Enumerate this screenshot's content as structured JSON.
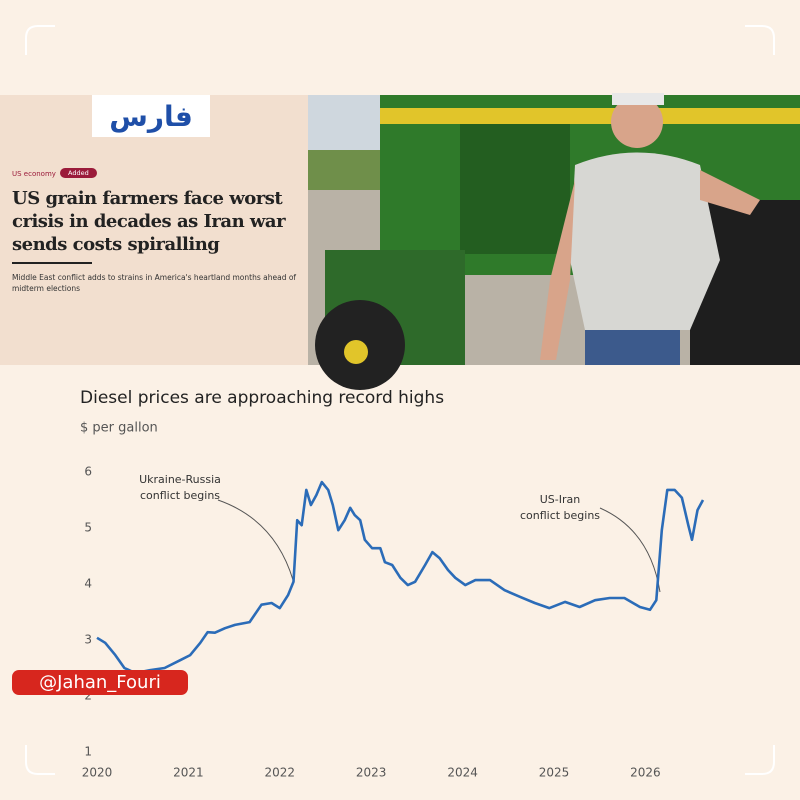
{
  "header": {
    "logo": "فارس",
    "section": "US economy",
    "badge": "Added",
    "headline": "US grain farmers face worst crisis in decades as Iran war sends costs spiralling",
    "standfirst": "Middle East conflict adds to strains in America's heartland months ahead of midterm elections"
  },
  "watermark": "@Jahan_Fouri",
  "chart_data": {
    "type": "line",
    "title": "Diesel prices are approaching record highs",
    "subtitle": "$ per gallon",
    "x": [
      2020.0,
      2020.09,
      2020.2,
      2020.3,
      2020.42,
      2020.58,
      2020.74,
      2020.91,
      2021.02,
      2021.13,
      2021.21,
      2021.29,
      2021.4,
      2021.51,
      2021.67,
      2021.8,
      2021.91,
      2022.0,
      2022.09,
      2022.15,
      2022.19,
      2022.24,
      2022.29,
      2022.34,
      2022.4,
      2022.46,
      2022.53,
      2022.58,
      2022.64,
      2022.71,
      2022.77,
      2022.82,
      2022.88,
      2022.93,
      2023.01,
      2023.1,
      2023.15,
      2023.23,
      2023.32,
      2023.4,
      2023.48,
      2023.59,
      2023.67,
      2023.75,
      2023.84,
      2023.92,
      2024.03,
      2024.14,
      2024.3,
      2024.46,
      2024.63,
      2024.79,
      2024.95,
      2025.12,
      2025.28,
      2025.45,
      2025.61,
      2025.77,
      2025.94,
      2026.05,
      2026.12,
      2026.18,
      2026.24,
      2026.32,
      2026.4,
      2026.47,
      2026.51,
      2026.57,
      2026.63
    ],
    "values": [
      3.04,
      2.95,
      2.73,
      2.5,
      2.41,
      2.46,
      2.5,
      2.64,
      2.73,
      2.95,
      3.14,
      3.13,
      3.21,
      3.27,
      3.32,
      3.63,
      3.66,
      3.57,
      3.8,
      4.04,
      5.14,
      5.05,
      5.68,
      5.41,
      5.59,
      5.82,
      5.68,
      5.41,
      4.96,
      5.14,
      5.36,
      5.23,
      5.14,
      4.79,
      4.64,
      4.64,
      4.39,
      4.34,
      4.11,
      3.98,
      4.04,
      4.34,
      4.57,
      4.46,
      4.25,
      4.11,
      3.98,
      4.07,
      4.07,
      3.89,
      3.77,
      3.66,
      3.57,
      3.68,
      3.59,
      3.71,
      3.75,
      3.75,
      3.59,
      3.54,
      3.71,
      4.96,
      5.68,
      5.68,
      5.54,
      5.05,
      4.79,
      5.32,
      5.5
    ],
    "color": "#2b6cb8",
    "xlim": [
      2020,
      2026.8
    ],
    "xticks": [
      2020,
      2021,
      2022,
      2023,
      2024,
      2025,
      2026
    ],
    "ylim": [
      1,
      6
    ],
    "yticks": [
      1,
      2,
      3,
      4,
      5,
      6
    ],
    "grid": false,
    "annotations": [
      [
        "Ukraine-Russia",
        "conflict begins"
      ],
      [
        "US-Iran",
        "conflict begins"
      ]
    ]
  }
}
